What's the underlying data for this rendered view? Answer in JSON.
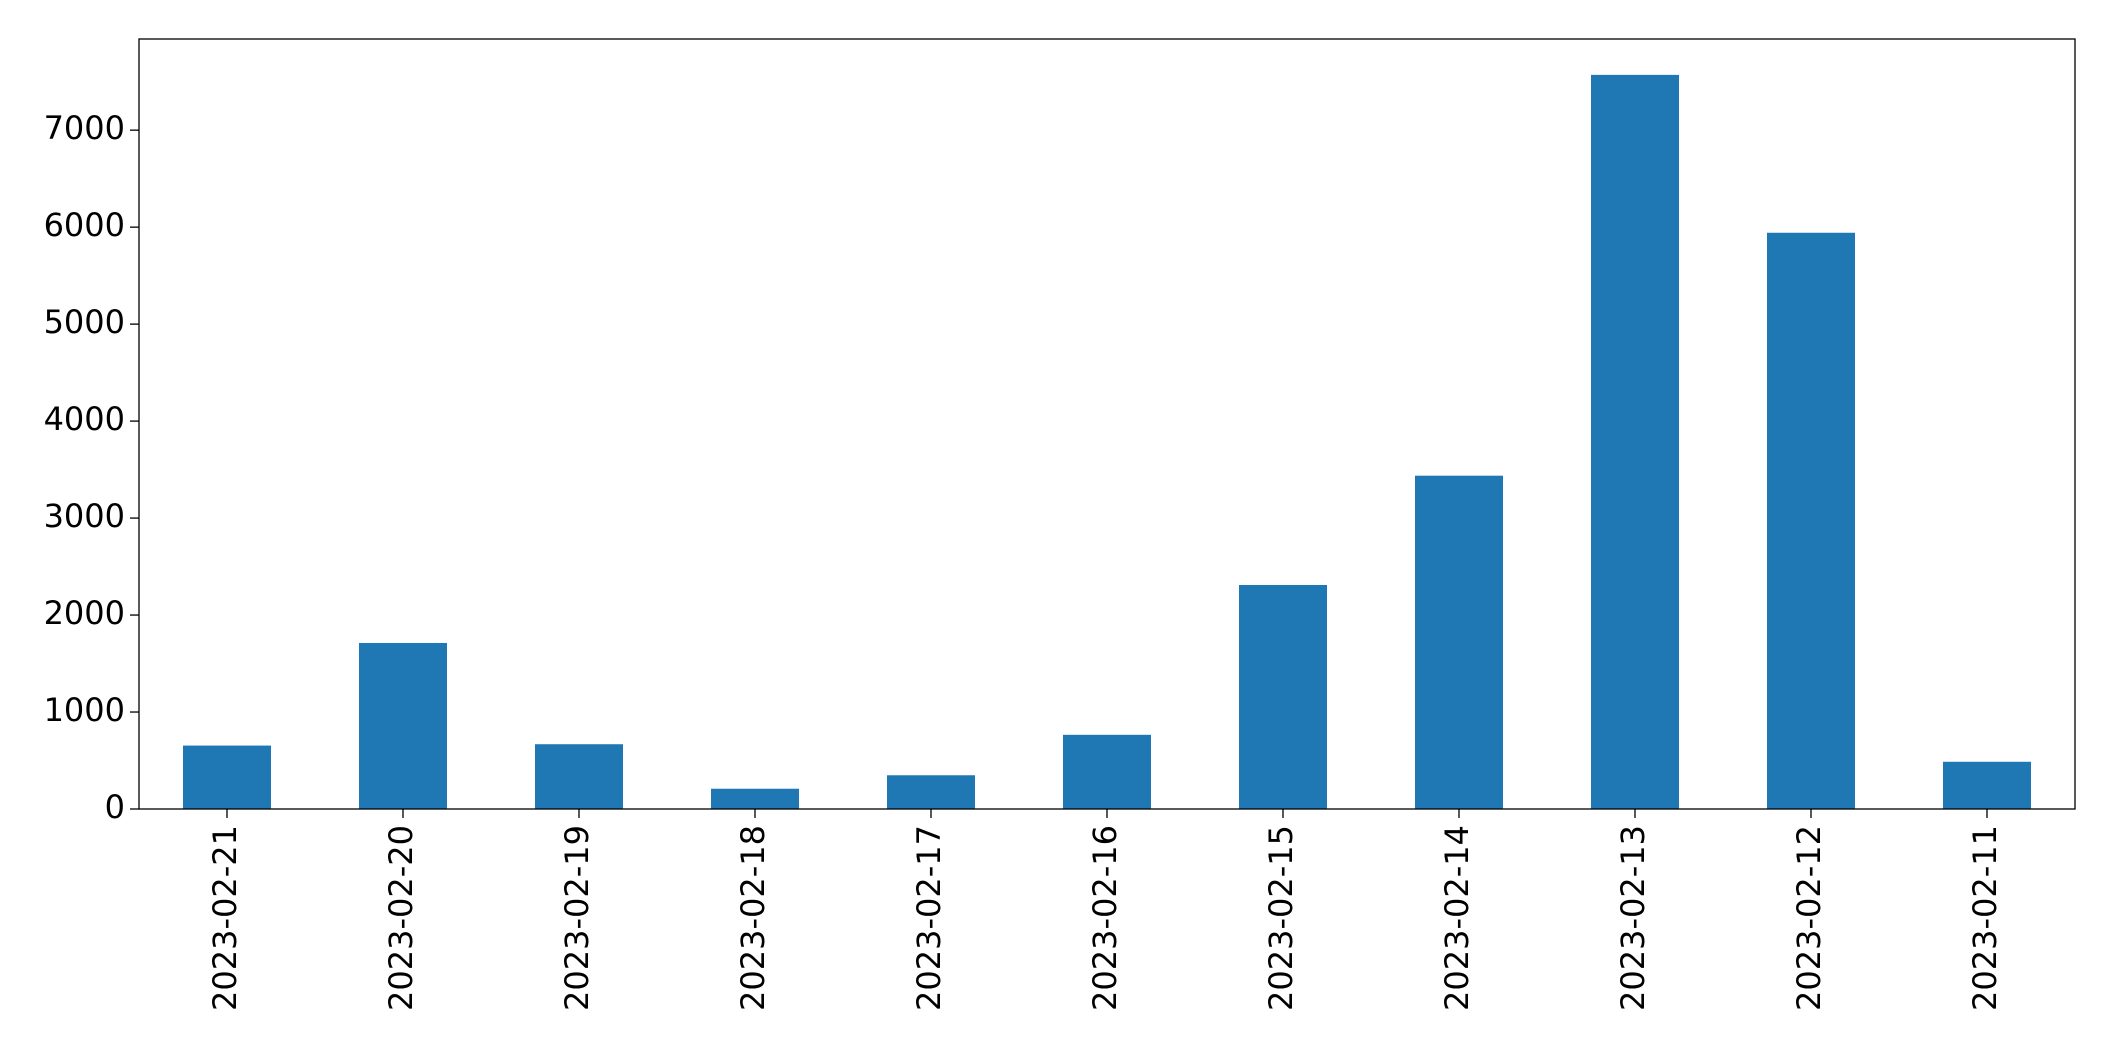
{
  "chart_data": {
    "type": "bar",
    "categories": [
      "2023-02-21",
      "2023-02-20",
      "2023-02-19",
      "2023-02-18",
      "2023-02-17",
      "2023-02-16",
      "2023-02-15",
      "2023-02-14",
      "2023-02-13",
      "2023-02-12",
      "2023-02-11"
    ],
    "values": [
      654,
      1712,
      668,
      209,
      348,
      765,
      2310,
      3437,
      7570,
      5942,
      487
    ],
    "color": "#1f77b4",
    "ylim": [
      0,
      7940
    ],
    "yticks": [
      0,
      1000,
      2000,
      3000,
      4000,
      5000,
      6000,
      7000
    ],
    "grid": false
  }
}
